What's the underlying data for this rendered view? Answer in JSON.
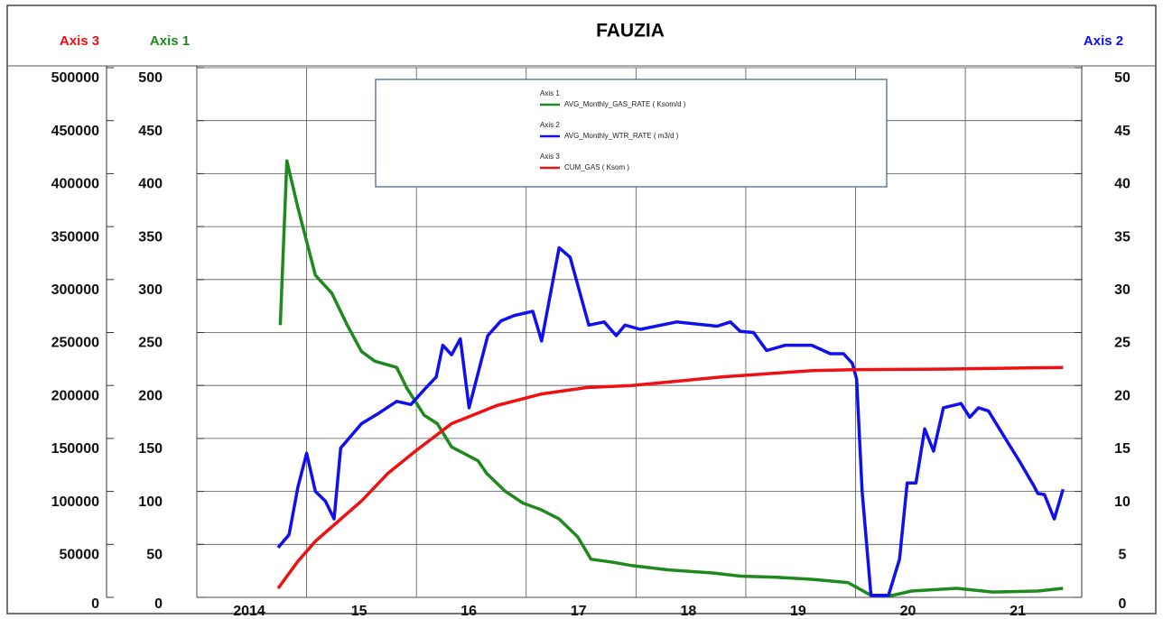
{
  "chart_data": {
    "type": "line",
    "title": "FAUZIA",
    "y_label": "Axis 1",
    "y2_label": "Axis 2",
    "y3_label": "Axis 3",
    "xlim": [
      2014,
      2022.06
    ],
    "xticks": [
      {
        "value": 2014,
        "label": "2014"
      },
      {
        "value": 2015,
        "label": "15"
      },
      {
        "value": 2016,
        "label": "16"
      },
      {
        "value": 2017,
        "label": "17"
      },
      {
        "value": 2018,
        "label": "18"
      },
      {
        "value": 2019,
        "label": "19"
      },
      {
        "value": 2020,
        "label": "20"
      },
      {
        "value": 2021,
        "label": "21"
      }
    ],
    "ylim": [
      0,
      500
    ],
    "yticks": [
      0,
      50,
      100,
      150,
      200,
      250,
      300,
      350,
      400,
      450,
      500
    ],
    "y2lim": [
      0,
      50
    ],
    "y2ticks": [
      0,
      5,
      10,
      15,
      20,
      25,
      30,
      35,
      40,
      45,
      50
    ],
    "y3lim": [
      0,
      500000
    ],
    "y3ticks": [
      0,
      50000,
      100000,
      150000,
      200000,
      250000,
      300000,
      350000,
      400000,
      450000,
      500000
    ],
    "grid": true,
    "series": [
      {
        "name": "AVG_Monthly_GAS_RATE ( Ksom/d )",
        "color": "#1e8a1e",
        "axis": "y",
        "x": [
          2014.76,
          2014.82,
          2014.92,
          2015.0,
          2015.08,
          2015.23,
          2015.37,
          2015.5,
          2015.62,
          2015.82,
          2015.91,
          2016.07,
          2016.19,
          2016.32,
          2016.56,
          2016.64,
          2016.81,
          2016.97,
          2017.13,
          2017.3,
          2017.47,
          2017.59,
          2017.8,
          2017.96,
          2018.29,
          2018.7,
          2018.95,
          2019.28,
          2019.6,
          2019.93,
          2020.14,
          2020.34,
          2020.51,
          2020.92,
          2021.25,
          2021.66,
          2021.89
        ],
        "values": [
          257,
          412,
          368,
          336,
          304,
          287,
          257,
          232,
          223,
          217,
          198,
          172,
          164,
          142,
          129,
          117,
          100,
          89,
          83,
          74,
          57,
          36,
          33,
          30,
          26,
          23,
          20,
          19,
          17,
          14,
          2,
          2,
          6,
          8.5,
          5,
          6,
          8.5
        ]
      },
      {
        "name": "AVG_Monthly_WTR_RATE ( m3/d )",
        "color": "#1010ee",
        "axis": "y2",
        "x": [
          2014.74,
          2014.84,
          2014.92,
          2015.0,
          2015.08,
          2015.17,
          2015.25,
          2015.31,
          2015.5,
          2015.66,
          2015.82,
          2015.95,
          2016.07,
          2016.18,
          2016.24,
          2016.32,
          2016.4,
          2016.48,
          2016.65,
          2016.77,
          2016.89,
          2017.06,
          2017.14,
          2017.3,
          2017.4,
          2017.57,
          2017.71,
          2017.82,
          2017.9,
          2018.04,
          2018.37,
          2018.74,
          2018.86,
          2018.95,
          2019.07,
          2019.19,
          2019.36,
          2019.6,
          2019.77,
          2019.89,
          2019.97,
          2020.01,
          2020.06,
          2020.14,
          2020.3,
          2020.4,
          2020.47,
          2020.55,
          2020.63,
          2020.71,
          2020.8,
          2020.96,
          2021.04,
          2021.12,
          2021.21,
          2021.37,
          2021.49,
          2021.62,
          2021.66,
          2021.72,
          2021.81,
          2021.89
        ],
        "values": [
          4.7,
          5.9,
          10.4,
          13.6,
          10.0,
          9.1,
          7.4,
          14.1,
          16.4,
          17.4,
          18.5,
          18.2,
          19.6,
          20.8,
          23.8,
          22.9,
          24.4,
          17.9,
          24.7,
          26.1,
          26.6,
          27.0,
          24.2,
          33.0,
          32.1,
          25.7,
          26.0,
          24.7,
          25.7,
          25.3,
          26.0,
          25.6,
          26.0,
          25.1,
          25.0,
          23.3,
          23.8,
          23.8,
          23.0,
          23.0,
          22.1,
          20.6,
          10.0,
          0.2,
          0.2,
          3.6,
          10.8,
          10.8,
          15.9,
          13.8,
          17.9,
          18.3,
          17.0,
          17.9,
          17.6,
          14.9,
          12.9,
          10.6,
          9.8,
          9.7,
          7.4,
          10.2
        ]
      },
      {
        "name": "CUM_GAS ( Ksom )",
        "color": "#ee1111",
        "axis": "y3",
        "x": [
          2014.74,
          2014.92,
          2015.08,
          2015.29,
          2015.5,
          2015.74,
          2015.99,
          2016.32,
          2016.73,
          2017.14,
          2017.55,
          2017.96,
          2018.37,
          2018.78,
          2019.19,
          2019.6,
          2020.01,
          2020.84,
          2021.89
        ],
        "values": [
          8500,
          34000,
          53000,
          72000,
          91000,
          117000,
          138000,
          164000,
          181000,
          192000,
          198000,
          200000,
          204000,
          208000,
          211000,
          214000,
          215000,
          215500,
          217000
        ]
      }
    ]
  }
}
